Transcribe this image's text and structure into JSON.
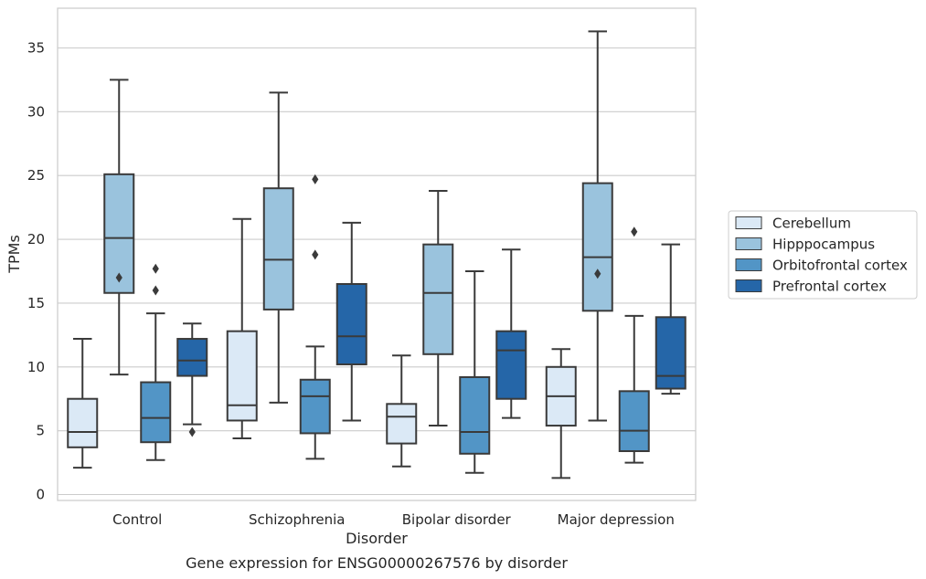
{
  "chart_data": {
    "type": "box",
    "title": "Gene expression for ENSG00000267576 by disorder",
    "xlabel": "Disorder",
    "ylabel": "TPMs",
    "ylim": [
      -0.4,
      38
    ],
    "yticks": [
      0,
      5,
      10,
      15,
      20,
      25,
      30,
      35
    ],
    "grid": true,
    "legend_position": "right",
    "categories": [
      "Control",
      "Schizophrenia",
      "Bipolar disorder",
      "Major depression"
    ],
    "series": [
      {
        "name": "Cerebellum",
        "color": "#dbe9f6",
        "boxes": [
          {
            "whisker_low": 2.1,
            "q1": 3.7,
            "median": 4.9,
            "q3": 7.5,
            "whisker_high": 12.2,
            "outliers": []
          },
          {
            "whisker_low": 4.4,
            "q1": 5.8,
            "median": 7.0,
            "q3": 12.8,
            "whisker_high": 21.6,
            "outliers": []
          },
          {
            "whisker_low": 2.2,
            "q1": 4.0,
            "median": 6.1,
            "q3": 7.1,
            "whisker_high": 10.9,
            "outliers": []
          },
          {
            "whisker_low": 1.3,
            "q1": 5.4,
            "median": 7.7,
            "q3": 10.0,
            "whisker_high": 11.4,
            "outliers": []
          }
        ]
      },
      {
        "name": "Hipppocampus",
        "color": "#9ac3dd",
        "boxes": [
          {
            "whisker_low": 9.4,
            "q1": 15.8,
            "median": 20.1,
            "q3": 25.1,
            "whisker_high": 32.5,
            "outliers": [
              17.0
            ]
          },
          {
            "whisker_low": 7.2,
            "q1": 14.5,
            "median": 18.4,
            "q3": 24.0,
            "whisker_high": 31.5,
            "outliers": []
          },
          {
            "whisker_low": 5.4,
            "q1": 11.0,
            "median": 15.8,
            "q3": 19.6,
            "whisker_high": 23.8,
            "outliers": []
          },
          {
            "whisker_low": 5.8,
            "q1": 14.4,
            "median": 18.6,
            "q3": 24.4,
            "whisker_high": 36.3,
            "outliers": [
              17.3
            ]
          }
        ]
      },
      {
        "name": "Orbitofrontal cortex",
        "color": "#5295c6",
        "boxes": [
          {
            "whisker_low": 2.7,
            "q1": 4.1,
            "median": 6.0,
            "q3": 8.8,
            "whisker_high": 14.2,
            "outliers": [
              17.7,
              16.0
            ]
          },
          {
            "whisker_low": 2.8,
            "q1": 4.8,
            "median": 7.7,
            "q3": 9.0,
            "whisker_high": 11.6,
            "outliers": [
              24.7,
              18.8
            ]
          },
          {
            "whisker_low": 1.7,
            "q1": 3.2,
            "median": 4.9,
            "q3": 9.2,
            "whisker_high": 17.5,
            "outliers": []
          },
          {
            "whisker_low": 2.5,
            "q1": 3.4,
            "median": 5.0,
            "q3": 8.1,
            "whisker_high": 14.0,
            "outliers": [
              20.6
            ]
          }
        ]
      },
      {
        "name": "Prefrontal cortex",
        "color": "#2566a8",
        "boxes": [
          {
            "whisker_low": 5.5,
            "q1": 9.3,
            "median": 10.5,
            "q3": 12.2,
            "whisker_high": 13.4,
            "outliers": [
              4.9
            ]
          },
          {
            "whisker_low": 5.8,
            "q1": 10.2,
            "median": 12.4,
            "q3": 16.5,
            "whisker_high": 21.3,
            "outliers": []
          },
          {
            "whisker_low": 6.0,
            "q1": 7.5,
            "median": 11.3,
            "q3": 12.8,
            "whisker_high": 19.2,
            "outliers": []
          },
          {
            "whisker_low": 7.9,
            "q1": 8.3,
            "median": 9.3,
            "q3": 13.9,
            "whisker_high": 19.6,
            "outliers": []
          }
        ]
      }
    ]
  }
}
